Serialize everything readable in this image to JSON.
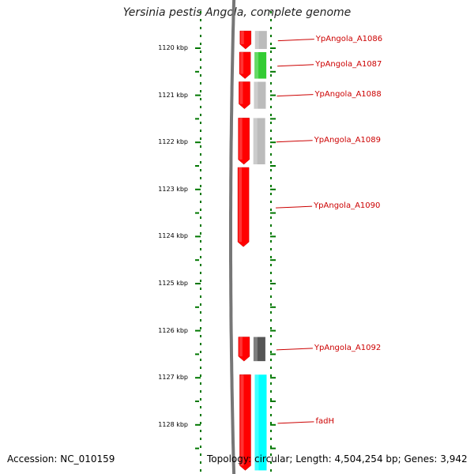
{
  "title": "Yersinia pestis Angola, complete genome",
  "footer": {
    "accession": "Accession: NC_010159",
    "topology": "Topology: circular; Length: 4,504,254 bp; Genes: 3,942"
  },
  "colors": {
    "backbone": "#777777",
    "tick": "#007700",
    "label": "#cc0000",
    "forward_gene": "#ff0000",
    "cds_grey": "#bbbbbb",
    "cds_green": "#33cc33",
    "cds_dark": "#555555",
    "cds_cyan": "#00ffff"
  },
  "scale": {
    "unit": "kbp",
    "ticks": [
      {
        "kbp": 1120,
        "label": "1120 kbp"
      },
      {
        "kbp": 1121,
        "label": "1121 kbp"
      },
      {
        "kbp": 1122,
        "label": "1122 kbp"
      },
      {
        "kbp": 1123,
        "label": "1123 kbp"
      },
      {
        "kbp": 1124,
        "label": "1124 kbp"
      },
      {
        "kbp": 1125,
        "label": "1125 kbp"
      },
      {
        "kbp": 1126,
        "label": "1126 kbp"
      },
      {
        "kbp": 1127,
        "label": "1127 kbp"
      },
      {
        "kbp": 1128,
        "label": "1128 kbp"
      }
    ]
  },
  "genes": [
    {
      "name": "YpAngola_A1086",
      "start_kbp": 1119.6,
      "end_kbp": 1120.05,
      "cds_color": "#bbbbbb"
    },
    {
      "name": "YpAngola_A1087",
      "start_kbp": 1120.05,
      "end_kbp": 1120.68,
      "cds_color": "#33cc33"
    },
    {
      "name": "YpAngola_A1088",
      "start_kbp": 1120.68,
      "end_kbp": 1121.32,
      "cds_color": "#bbbbbb"
    },
    {
      "name": "YpAngola_A1089",
      "start_kbp": 1121.45,
      "end_kbp": 1122.5,
      "cds_color": "#bbbbbb"
    },
    {
      "name": "YpAngola_A1090",
      "start_kbp": 1122.5,
      "end_kbp": 1124.25,
      "cds_color": null
    },
    {
      "name": "YpAngola_A1092",
      "start_kbp": 1126.1,
      "end_kbp": 1126.68,
      "cds_color": "#555555"
    },
    {
      "name": "fadH",
      "start_kbp": 1126.9,
      "end_kbp": 1129.0,
      "cds_color": "#00ffff"
    }
  ]
}
